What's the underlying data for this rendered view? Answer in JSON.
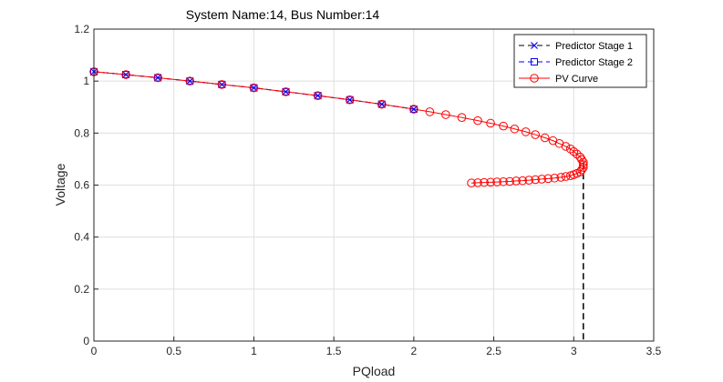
{
  "chart_data": {
    "type": "line",
    "title": "System Name:14, Bus Number:14",
    "xlabel": "PQload",
    "ylabel": "Voltage",
    "xlim": [
      0,
      3.5
    ],
    "ylim": [
      0,
      1.2
    ],
    "xticks": [
      "0",
      "0.5",
      "1",
      "1.5",
      "2",
      "2.5",
      "3",
      "3.5"
    ],
    "yticks": [
      "0",
      "0.2",
      "0.4",
      "0.6",
      "0.8",
      "1",
      "1.2"
    ],
    "grid": true,
    "legend_position": "top-right",
    "critical_point": {
      "x": 3.06,
      "y": 0.685
    },
    "series": [
      {
        "name": "Predictor Stage 1",
        "color": "#0000ff",
        "marker": "x",
        "line": "dashed-black",
        "x": [
          0,
          0.2,
          0.4,
          0.6,
          0.8,
          1.0,
          1.2,
          1.4,
          1.6,
          1.8,
          2.0
        ],
        "y": [
          1.036,
          1.025,
          1.013,
          1.0,
          0.987,
          0.974,
          0.959,
          0.944,
          0.928,
          0.911,
          0.892
        ]
      },
      {
        "name": "Predictor Stage 2",
        "color": "#0000ff",
        "marker": "square",
        "line": "dashed-blue",
        "x": [
          0,
          0.2,
          0.4,
          0.6,
          0.8,
          1.0,
          1.2,
          1.4,
          1.6,
          1.8,
          2.0
        ],
        "y": [
          1.036,
          1.025,
          1.013,
          1.0,
          0.987,
          0.974,
          0.959,
          0.944,
          0.928,
          0.911,
          0.892
        ]
      },
      {
        "name": "PV Curve",
        "color": "#ff0000",
        "marker": "circle",
        "line": "solid-red",
        "x": [
          0,
          0.2,
          0.4,
          0.6,
          0.8,
          1.0,
          1.2,
          1.4,
          1.6,
          1.8,
          2.0,
          2.1,
          2.2,
          2.3,
          2.4,
          2.48,
          2.56,
          2.63,
          2.7,
          2.76,
          2.82,
          2.87,
          2.91,
          2.95,
          2.98,
          3.0,
          3.02,
          3.04,
          3.05,
          3.06,
          3.06,
          3.06,
          3.05,
          3.04,
          3.02,
          3.0,
          2.98,
          2.95,
          2.92,
          2.88,
          2.84,
          2.8,
          2.76,
          2.72,
          2.68,
          2.64,
          2.6,
          2.56,
          2.52,
          2.48,
          2.44,
          2.4,
          2.36
        ],
        "y": [
          1.036,
          1.025,
          1.013,
          1.0,
          0.987,
          0.974,
          0.959,
          0.944,
          0.928,
          0.911,
          0.892,
          0.882,
          0.871,
          0.86,
          0.848,
          0.838,
          0.827,
          0.816,
          0.805,
          0.794,
          0.782,
          0.771,
          0.76,
          0.749,
          0.739,
          0.729,
          0.719,
          0.708,
          0.698,
          0.688,
          0.678,
          0.668,
          0.659,
          0.651,
          0.645,
          0.64,
          0.636,
          0.633,
          0.63,
          0.627,
          0.625,
          0.623,
          0.621,
          0.619,
          0.617,
          0.616,
          0.614,
          0.613,
          0.612,
          0.611,
          0.61,
          0.609,
          0.608
        ]
      }
    ]
  }
}
